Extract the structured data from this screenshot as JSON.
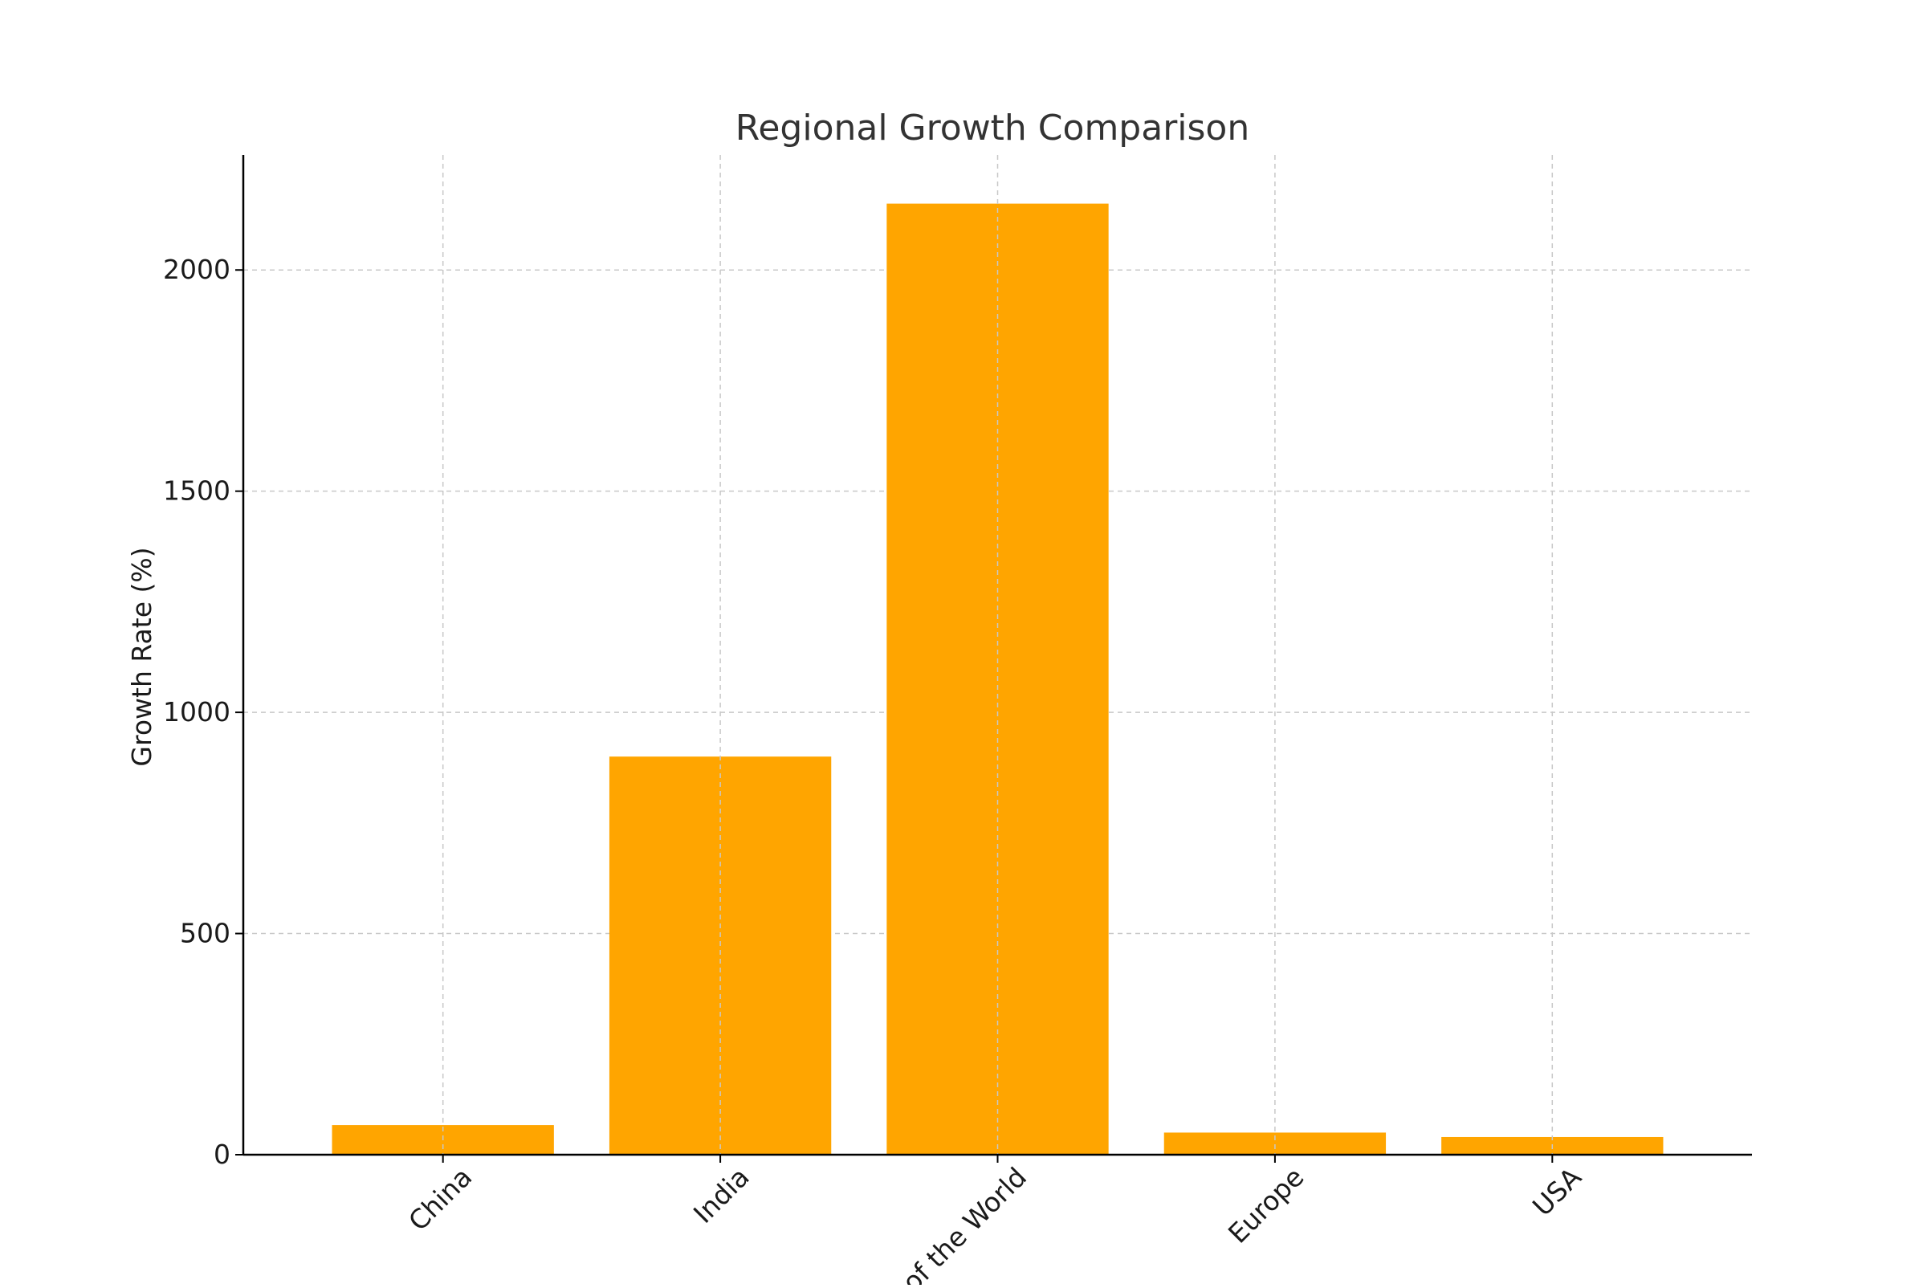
{
  "chart_data": {
    "type": "bar",
    "title": "Regional Growth Comparison",
    "xlabel": "",
    "ylabel": "Growth Rate (%)",
    "categories": [
      "China",
      "India",
      "Rest of the World",
      "Europe",
      "USA"
    ],
    "values": [
      67,
      900,
      2150,
      50,
      40
    ],
    "ylim": [
      0,
      2260
    ],
    "yticks": [
      0,
      500,
      1000,
      1500,
      2000
    ],
    "bar_color": "#FFA500",
    "grid": true,
    "x_tick_rotation_deg": 45,
    "legend": "none"
  }
}
